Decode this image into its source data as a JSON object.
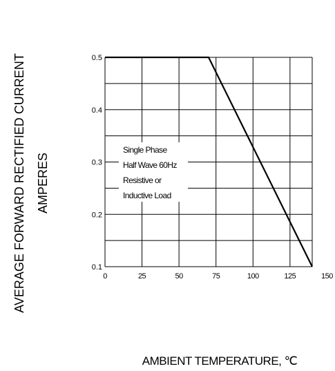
{
  "chart_data": {
    "type": "line",
    "title": "",
    "ylabel_line1": "AVERAGE FORWARD RECTIFIED CURRENT",
    "ylabel_line2": "AMPERES",
    "xlabel": "AMBIENT TEMPERATURE, ℃",
    "xlim": [
      0,
      140
    ],
    "ylim": [
      0.1,
      0.5
    ],
    "x_ticks": [
      0,
      25,
      50,
      75,
      100,
      125,
      150
    ],
    "y_ticks": [
      0.1,
      0.2,
      0.3,
      0.4,
      0.5
    ],
    "grid": true,
    "series": [
      {
        "x": [
          0,
          70,
          140
        ],
        "y": [
          0.5,
          0.5,
          0.1
        ]
      }
    ],
    "annotation": [
      "Single Phase",
      "Half Wave 60Hz",
      "Resistive or",
      "Inductive Load"
    ]
  }
}
